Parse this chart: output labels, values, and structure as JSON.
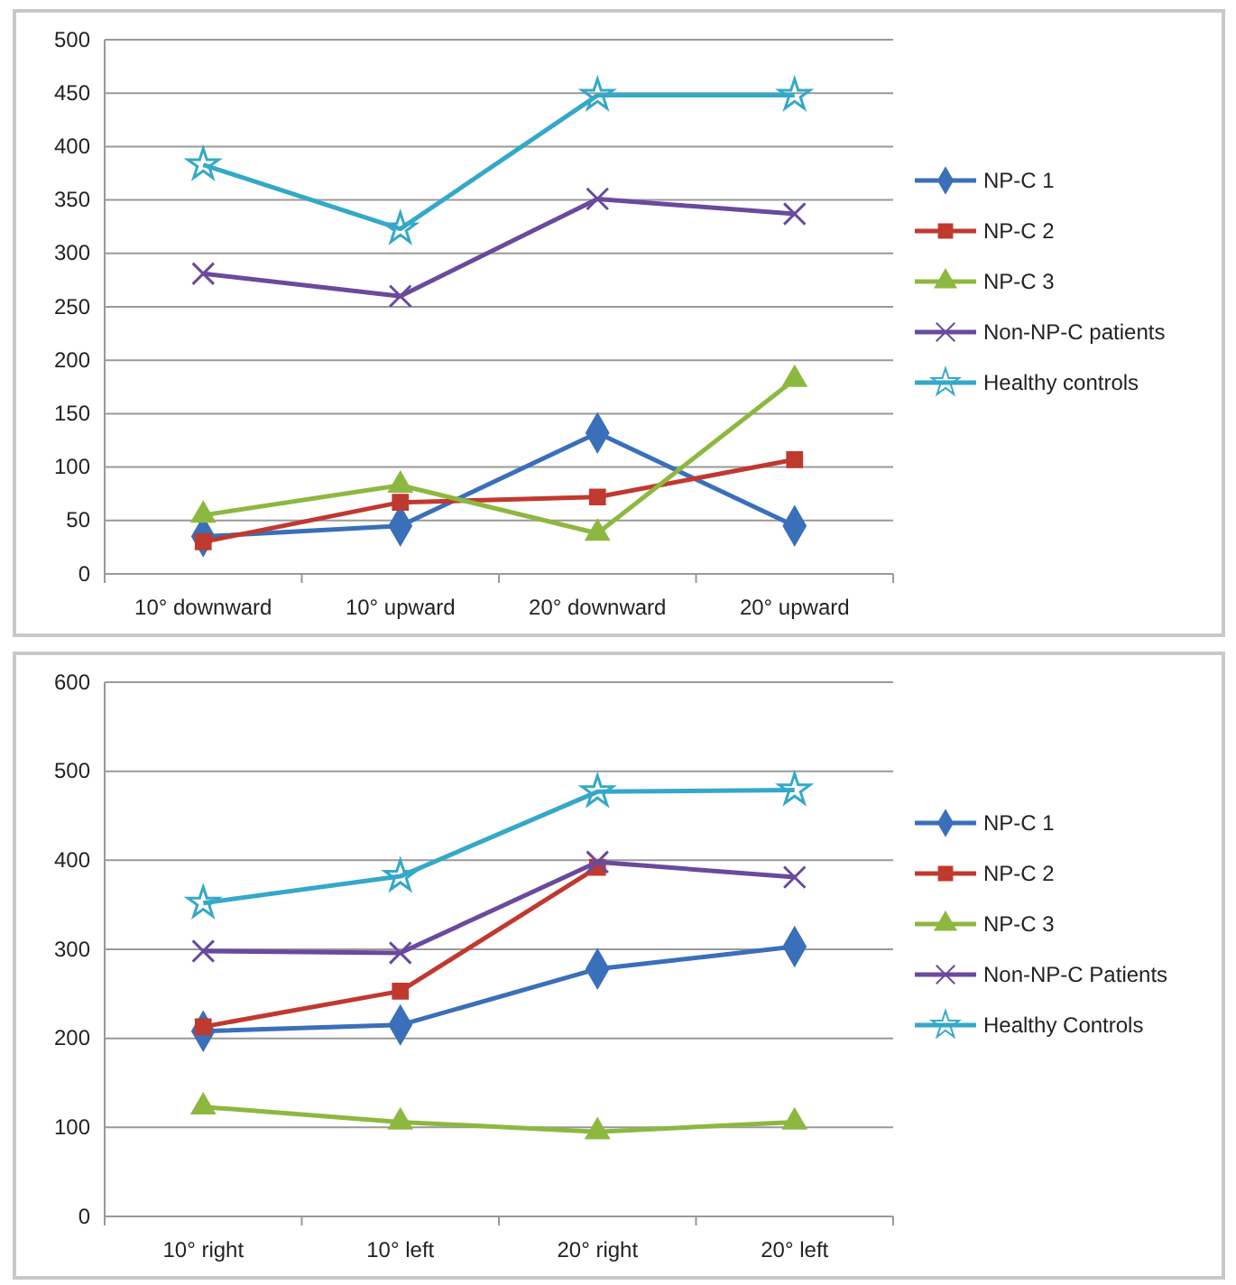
{
  "chart_data": [
    {
      "type": "line",
      "categories": [
        "10° downward",
        "10° upward",
        "20° downward",
        "20° upward"
      ],
      "ylim": [
        0,
        500
      ],
      "yticks": [
        0,
        50,
        100,
        150,
        200,
        250,
        300,
        350,
        400,
        450,
        500
      ],
      "grid": "y",
      "legend": "right",
      "series": [
        {
          "name": "NP-C 1",
          "color": "#3a6fba",
          "marker": "diamond",
          "values": [
            35,
            45,
            132,
            45
          ]
        },
        {
          "name": "NP-C 2",
          "color": "#c0392f",
          "marker": "square",
          "values": [
            30,
            67,
            72,
            107
          ]
        },
        {
          "name": "NP-C 3",
          "color": "#8db840",
          "marker": "triangle",
          "values": [
            55,
            83,
            38,
            182
          ]
        },
        {
          "name": "Non-NP-C patients",
          "color": "#6a4a9c",
          "marker": "cross",
          "values": [
            281,
            260,
            351,
            337
          ]
        },
        {
          "name": "Healthy controls",
          "color": "#35a8c8",
          "marker": "star",
          "values": [
            383,
            323,
            448,
            448
          ]
        }
      ]
    },
    {
      "type": "line",
      "categories": [
        "10° right",
        "10° left",
        "20° right",
        "20° left"
      ],
      "ylim": [
        0,
        600
      ],
      "yticks": [
        0,
        100,
        200,
        300,
        400,
        500,
        600
      ],
      "grid": "y",
      "legend": "right",
      "series": [
        {
          "name": "NP-C 1",
          "color": "#3a6fba",
          "marker": "diamond",
          "values": [
            208,
            215,
            278,
            303
          ]
        },
        {
          "name": "NP-C 2",
          "color": "#c0392f",
          "marker": "square",
          "values": [
            213,
            253,
            392,
            null
          ]
        },
        {
          "name": "NP-C 3",
          "color": "#8db840",
          "marker": "triangle",
          "values": [
            123,
            106,
            95,
            106
          ]
        },
        {
          "name": "Non-NP-C Patients",
          "color": "#6a4a9c",
          "marker": "cross",
          "values": [
            298,
            296,
            398,
            381
          ]
        },
        {
          "name": "Healthy Controls",
          "color": "#35a8c8",
          "marker": "star",
          "values": [
            352,
            382,
            477,
            479
          ]
        }
      ]
    }
  ]
}
